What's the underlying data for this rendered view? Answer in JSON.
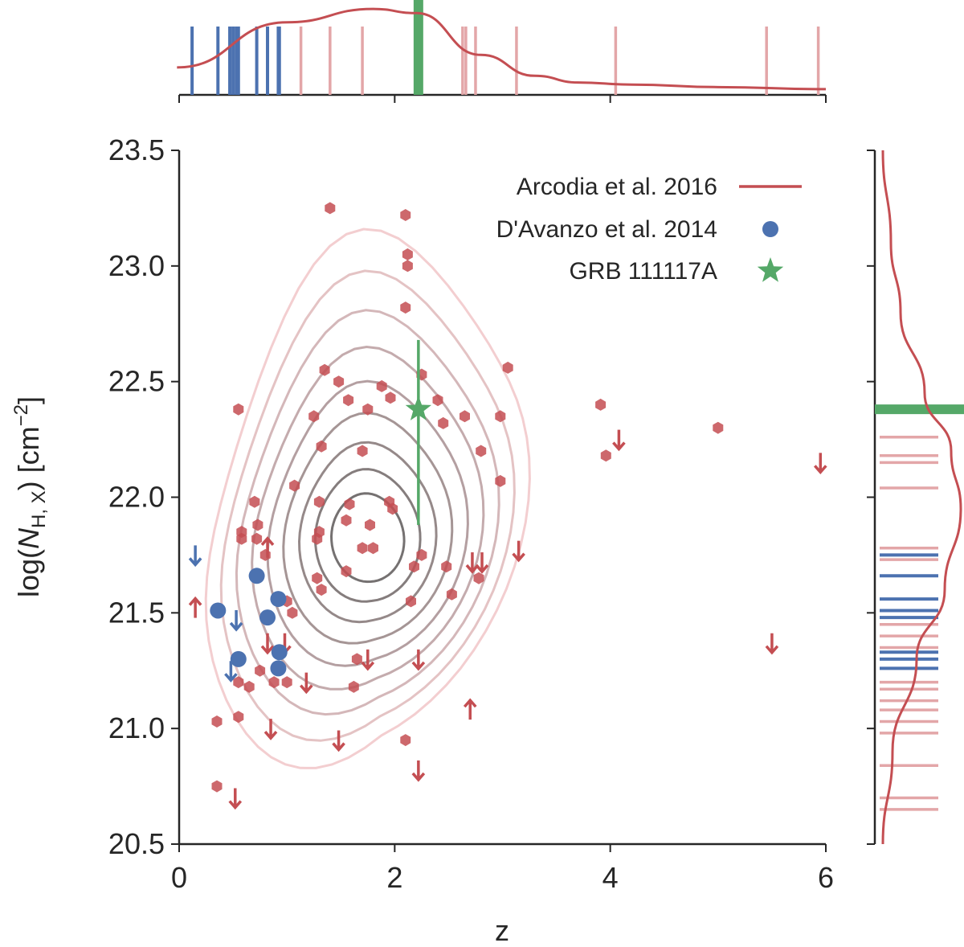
{
  "chart_data": {
    "type": "scatter",
    "title": "",
    "xlabel": "z",
    "ylabel_parts": {
      "pre": "log(",
      "var": "N",
      "sub": "H, X",
      "post": ") [cm",
      "sup": "−2",
      "end": "]"
    },
    "xlim": [
      0,
      6
    ],
    "ylim": [
      20.5,
      23.5
    ],
    "x_ticks": [
      "0",
      "2",
      "4",
      "6"
    ],
    "y_ticks": [
      "20.5",
      "21.0",
      "21.5",
      "22.0",
      "22.5",
      "23.0",
      "23.5"
    ],
    "colors": {
      "arcodia": "#c44e52",
      "arcodia_light": "#e3a6a8",
      "davanzo": "#4c72b0",
      "grb": "#55a868",
      "axis": "#262626",
      "contour_dark": "#555555"
    },
    "legend": [
      {
        "label": "Arcodia et al. 2016",
        "marker": "line"
      },
      {
        "label": "D'Avanzo et al. 2014",
        "marker": "circle"
      },
      {
        "label": "GRB 111117A",
        "marker": "star"
      }
    ],
    "series": [
      {
        "name": "Arcodia et al. 2016",
        "marker": "hexagon",
        "points": [
          [
            0.55,
            22.38
          ],
          [
            1.4,
            23.25
          ],
          [
            2.1,
            23.22
          ],
          [
            2.12,
            23.05
          ],
          [
            2.12,
            23.0
          ],
          [
            2.1,
            22.82
          ],
          [
            1.35,
            22.55
          ],
          [
            1.48,
            22.5
          ],
          [
            1.88,
            22.48
          ],
          [
            1.96,
            22.43
          ],
          [
            1.75,
            22.38
          ],
          [
            1.57,
            22.42
          ],
          [
            1.25,
            22.35
          ],
          [
            1.32,
            22.22
          ],
          [
            1.7,
            22.2
          ],
          [
            2.4,
            22.42
          ],
          [
            2.25,
            22.53
          ],
          [
            2.45,
            22.32
          ],
          [
            2.65,
            22.35
          ],
          [
            2.8,
            22.2
          ],
          [
            2.98,
            22.35
          ],
          [
            3.05,
            22.56
          ],
          [
            2.98,
            22.07
          ],
          [
            3.91,
            22.4
          ],
          [
            3.96,
            22.18
          ],
          [
            5.0,
            22.3
          ],
          [
            1.07,
            22.05
          ],
          [
            1.3,
            21.98
          ],
          [
            1.58,
            21.97
          ],
          [
            1.95,
            21.98
          ],
          [
            1.98,
            21.95
          ],
          [
            1.77,
            21.88
          ],
          [
            1.55,
            21.9
          ],
          [
            1.28,
            21.82
          ],
          [
            1.3,
            21.85
          ],
          [
            0.7,
            21.98
          ],
          [
            0.73,
            21.88
          ],
          [
            0.58,
            21.85
          ],
          [
            0.58,
            21.82
          ],
          [
            0.72,
            21.82
          ],
          [
            0.8,
            21.75
          ],
          [
            1.28,
            21.65
          ],
          [
            1.32,
            21.6
          ],
          [
            1.7,
            21.78
          ],
          [
            1.8,
            21.78
          ],
          [
            1.55,
            21.68
          ],
          [
            2.25,
            21.75
          ],
          [
            2.18,
            21.7
          ],
          [
            2.48,
            21.7
          ],
          [
            2.53,
            21.58
          ],
          [
            2.15,
            21.55
          ],
          [
            1.65,
            21.3
          ],
          [
            1.05,
            21.5
          ],
          [
            1.0,
            21.55
          ],
          [
            0.55,
            21.2
          ],
          [
            0.75,
            21.25
          ],
          [
            0.65,
            21.18
          ],
          [
            1.0,
            21.2
          ],
          [
            0.88,
            21.2
          ],
          [
            1.62,
            21.18
          ],
          [
            0.55,
            21.05
          ],
          [
            0.35,
            21.03
          ],
          [
            0.35,
            20.75
          ],
          [
            2.1,
            20.95
          ],
          [
            2.78,
            21.65
          ]
        ]
      },
      {
        "name": "Arcodia et al. 2016 upper limits",
        "marker": "arrow-down",
        "points": [
          [
            4.08,
            22.25
          ],
          [
            5.95,
            22.15
          ],
          [
            3.15,
            21.77
          ],
          [
            2.72,
            21.72
          ],
          [
            2.81,
            21.72
          ],
          [
            0.82,
            21.37
          ],
          [
            0.98,
            21.37
          ],
          [
            1.75,
            21.3
          ],
          [
            2.22,
            21.3
          ],
          [
            1.18,
            21.2
          ],
          [
            0.85,
            21.0
          ],
          [
            1.48,
            20.95
          ],
          [
            2.22,
            20.82
          ],
          [
            0.52,
            20.7
          ],
          [
            5.5,
            21.37
          ]
        ]
      },
      {
        "name": "Arcodia et al. 2016 lower limits",
        "marker": "arrow-up",
        "points": [
          [
            0.82,
            21.78
          ],
          [
            0.15,
            21.52
          ],
          [
            2.7,
            21.08
          ]
        ]
      },
      {
        "name": "D'Avanzo et al. 2014",
        "marker": "circle",
        "points": [
          [
            0.72,
            21.66
          ],
          [
            0.92,
            21.56
          ],
          [
            0.36,
            21.51
          ],
          [
            0.82,
            21.48
          ],
          [
            0.93,
            21.33
          ],
          [
            0.92,
            21.26
          ],
          [
            0.55,
            21.3
          ]
        ]
      },
      {
        "name": "D'Avanzo et al. 2014 upper limits",
        "marker": "arrow-down",
        "points": [
          [
            0.15,
            21.75
          ],
          [
            0.53,
            21.47
          ],
          [
            0.48,
            21.25
          ]
        ]
      },
      {
        "name": "GRB 111117A",
        "marker": "star",
        "points": [
          [
            2.22,
            22.38
          ]
        ],
        "y_error": [
          [
            21.88,
            22.68
          ]
        ]
      }
    ],
    "contour_peak": [
      1.75,
      21.82
    ],
    "contour_levels": 9,
    "rug_x": {
      "davanzo": [
        0.12,
        0.36,
        0.47,
        0.5,
        0.53,
        0.55,
        0.72,
        0.82,
        0.92,
        0.93
      ],
      "arcodia": [
        1.13,
        1.4,
        1.7,
        2.63,
        2.66,
        2.75,
        3.13,
        4.05,
        5.45,
        5.93
      ],
      "grb": 2.22
    },
    "rug_y": {
      "davanzo": [
        21.26,
        21.3,
        21.33,
        21.48,
        21.51,
        21.56,
        21.66,
        21.75
      ],
      "arcodia": [
        20.65,
        20.7,
        20.84,
        20.98,
        21.03,
        21.08,
        21.12,
        21.17,
        21.2,
        21.26,
        21.35,
        21.4,
        21.45,
        21.73,
        21.78,
        22.04,
        22.15,
        22.18,
        22.26
      ],
      "grb": 22.38
    },
    "kde_x": [
      [
        -0.02,
        0.28
      ],
      [
        1.0,
        0.82
      ],
      [
        1.8,
        0.98
      ],
      [
        2.2,
        0.93
      ],
      [
        2.8,
        0.43
      ],
      [
        3.3,
        0.18
      ],
      [
        3.7,
        0.1
      ],
      [
        4.2,
        0.075
      ],
      [
        5.0,
        0.045
      ],
      [
        6.0,
        0.02
      ]
    ],
    "kde_y": [
      [
        20.5,
        0.03
      ],
      [
        20.9,
        0.15
      ],
      [
        21.3,
        0.45
      ],
      [
        21.6,
        0.8
      ],
      [
        21.95,
        1.0
      ],
      [
        22.2,
        0.88
      ],
      [
        22.45,
        0.55
      ],
      [
        22.8,
        0.25
      ],
      [
        23.1,
        0.13
      ],
      [
        23.5,
        0.03
      ]
    ]
  }
}
